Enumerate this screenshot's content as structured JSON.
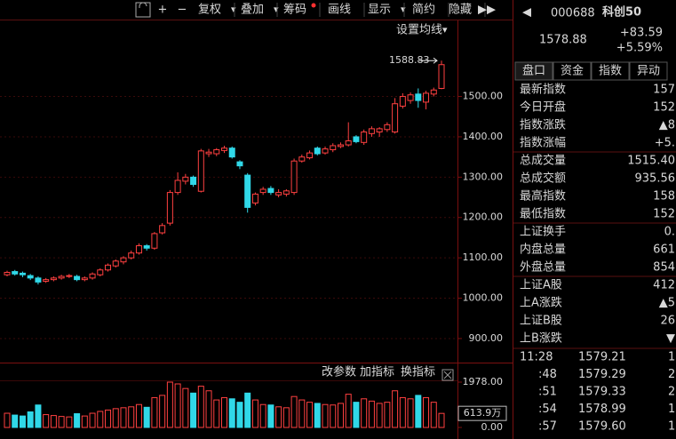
{
  "toolbar": {
    "buttons": [
      "+",
      "−",
      "复权",
      "叠加",
      "筹码",
      "画线",
      "显示",
      "简约",
      "隐藏"
    ],
    "ma_setting": "设置均线",
    "indicator_buttons": [
      "改参数",
      "加指标",
      "换指标"
    ]
  },
  "quote": {
    "code": "000688",
    "name": "科创50",
    "price": "1578.88",
    "change": "+83.59",
    "pct": "+5.59%"
  },
  "tabs": [
    "盘口",
    "资金",
    "指数",
    "异动"
  ],
  "stats": [
    {
      "label": "最新指数",
      "value": "157",
      "color": "#ff5050"
    },
    {
      "label": "今日开盘",
      "value": "152",
      "color": "#ff5050"
    },
    {
      "label": "指数涨跌",
      "value": "▲8",
      "color": "#ff5050"
    },
    {
      "label": "指数涨幅",
      "value": "+5.",
      "color": "#ff5050"
    },
    {
      "label": "总成交量",
      "value": "1515.40",
      "color": "#e8e8c8"
    },
    {
      "label": "总成交额",
      "value": "935.56",
      "color": "#c8e8f0"
    },
    {
      "label": "最高指数",
      "value": "158",
      "color": "#ff5050"
    },
    {
      "label": "最低指数",
      "value": "152",
      "color": "#ff5050"
    },
    {
      "label": "上证换手",
      "value": "0.",
      "color": "#e0e0e0"
    },
    {
      "label": "内盘总量",
      "value": "661",
      "color": "#30e030"
    },
    {
      "label": "外盘总量",
      "value": "854",
      "color": "#ff5050"
    },
    {
      "label": "上证A股",
      "value": "412",
      "color": "#ff5050"
    },
    {
      "label": "上A涨跌",
      "value": "▲5",
      "color": "#ff5050"
    },
    {
      "label": "上证B股",
      "value": "26",
      "color": "#30e030"
    },
    {
      "label": "上B涨跌",
      "value": "▼",
      "color": "#30e030"
    }
  ],
  "trades": [
    {
      "time": "11:28",
      "price": "1579.21",
      "vol": "1"
    },
    {
      "time": ":48",
      "price": "1579.29",
      "vol": "2"
    },
    {
      "time": ":51",
      "price": "1579.33",
      "vol": "2"
    },
    {
      "time": ":54",
      "price": "1578.99",
      "vol": "1"
    },
    {
      "time": ":57",
      "price": "1579.60",
      "vol": "1"
    }
  ],
  "chart_data": [
    {
      "type": "candlestick",
      "up_color": "#ff4040",
      "down_color": "#30d8e8",
      "grid": true,
      "ylim": [
        847,
        1640
      ],
      "yticks": [
        {
          "value": 900,
          "label": "900.00"
        },
        {
          "value": 1000,
          "label": "1000.00"
        },
        {
          "value": 1100,
          "label": "1100.00"
        },
        {
          "value": 1200,
          "label": "1200.00"
        },
        {
          "value": 1300,
          "label": "1300.00"
        },
        {
          "value": 1400,
          "label": "1400.00"
        },
        {
          "value": 1500,
          "label": "1500.00"
        }
      ],
      "open": [
        1058,
        1066,
        1062,
        1056,
        1050,
        1042,
        1046,
        1050,
        1054,
        1054,
        1046,
        1050,
        1058,
        1070,
        1080,
        1090,
        1100,
        1112,
        1130,
        1124,
        1162,
        1186,
        1262,
        1290,
        1300,
        1265,
        1358,
        1358,
        1366,
        1372,
        1338,
        1305,
        1236,
        1262,
        1272,
        1256,
        1258,
        1262,
        1340,
        1348,
        1372,
        1360,
        1368,
        1376,
        1380,
        1400,
        1386,
        1408,
        1412,
        1418,
        1412,
        1476,
        1490,
        1506,
        1486,
        1506,
        1520
      ],
      "high": [
        1068,
        1070,
        1066,
        1060,
        1054,
        1050,
        1054,
        1058,
        1060,
        1058,
        1054,
        1064,
        1074,
        1086,
        1096,
        1104,
        1118,
        1136,
        1134,
        1164,
        1186,
        1268,
        1312,
        1308,
        1304,
        1370,
        1370,
        1372,
        1378,
        1376,
        1342,
        1310,
        1262,
        1276,
        1278,
        1270,
        1270,
        1346,
        1356,
        1366,
        1376,
        1376,
        1384,
        1386,
        1436,
        1404,
        1418,
        1426,
        1424,
        1436,
        1496,
        1508,
        1510,
        1520,
        1514,
        1522,
        1588.83
      ],
      "low": [
        1054,
        1056,
        1052,
        1045,
        1034,
        1038,
        1042,
        1046,
        1050,
        1042,
        1042,
        1046,
        1054,
        1066,
        1076,
        1084,
        1096,
        1108,
        1118,
        1120,
        1158,
        1180,
        1256,
        1282,
        1276,
        1262,
        1350,
        1352,
        1360,
        1346,
        1320,
        1212,
        1230,
        1256,
        1256,
        1250,
        1252,
        1256,
        1336,
        1344,
        1354,
        1356,
        1362,
        1372,
        1376,
        1384,
        1380,
        1400,
        1400,
        1412,
        1408,
        1470,
        1482,
        1472,
        1468,
        1500,
        1518
      ],
      "close": [
        1064,
        1060,
        1058,
        1050,
        1040,
        1046,
        1050,
        1054,
        1056,
        1046,
        1050,
        1060,
        1070,
        1082,
        1092,
        1100,
        1112,
        1130,
        1124,
        1160,
        1180,
        1262,
        1292,
        1300,
        1282,
        1365,
        1362,
        1368,
        1372,
        1350,
        1328,
        1225,
        1258,
        1270,
        1262,
        1262,
        1266,
        1340,
        1350,
        1360,
        1358,
        1370,
        1378,
        1380,
        1390,
        1388,
        1412,
        1420,
        1420,
        1430,
        1482,
        1500,
        1504,
        1490,
        1508,
        1516,
        1578.88
      ]
    },
    {
      "type": "bar",
      "ylim": [
        0,
        1978
      ],
      "yticks": [
        {
          "value": 1978,
          "label": "1978.00"
        },
        {
          "value": 0,
          "label": "0.00"
        },
        {
          "value": 613.9,
          "label": "613.9万"
        }
      ],
      "values": [
        620,
        540,
        500,
        680,
        980,
        560,
        520,
        480,
        460,
        600,
        500,
        620,
        700,
        760,
        820,
        860,
        900,
        1000,
        880,
        1300,
        1400,
        1978,
        1900,
        1700,
        1500,
        1800,
        1600,
        1200,
        1300,
        1250,
        1100,
        1500,
        1200,
        1000,
        980,
        900,
        860,
        1350,
        1200,
        1100,
        1050,
        1000,
        980,
        1050,
        1450,
        1100,
        1250,
        1150,
        1050,
        1100,
        1600,
        1300,
        1250,
        1400,
        1300,
        1100,
        613.9
      ]
    }
  ]
}
